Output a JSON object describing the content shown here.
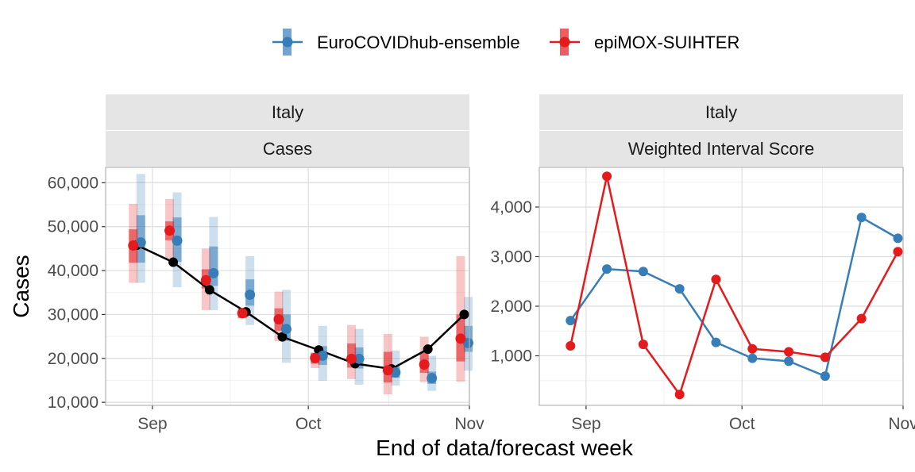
{
  "colors": {
    "ensemble": "#377eb8",
    "epimox": "#e41a1c",
    "truth": "#000000",
    "strip_bg": "#e5e5e5",
    "grid_major": "#dedede",
    "grid_minor": "#f0f0f0",
    "panel_border": "#b3b3b3"
  },
  "legend": {
    "items": [
      {
        "label": "EuroCOVIDhub-ensemble",
        "color_key": "ensemble"
      },
      {
        "label": "epiMOX-SUIHTER",
        "color_key": "epimox"
      }
    ]
  },
  "xlabel": "End of data/forecast week",
  "chart_data": [
    {
      "type": "line",
      "strip_top": "Italy",
      "strip_bottom": "Cases",
      "ylabel": "Cases",
      "x_ticks": [
        "2021-09-01",
        "2021-10-01",
        "2021-11-01"
      ],
      "x_tick_labels": [
        "Sep",
        "Oct",
        "Nov"
      ],
      "xlim": [
        "2021-08-23",
        "2021-11-01"
      ],
      "y_ticks": [
        10000,
        20000,
        30000,
        40000,
        50000,
        60000
      ],
      "y_tick_labels": [
        "10,000",
        "20,000",
        "30,000",
        "40,000",
        "50,000",
        "60,000"
      ],
      "ylim": [
        9300,
        63500
      ],
      "truth": {
        "name": "",
        "x": [
          "2021-08-29",
          "2021-09-05",
          "2021-09-12",
          "2021-09-19",
          "2021-09-26",
          "2021-10-03",
          "2021-10-10",
          "2021-10-17",
          "2021-10-24",
          "2021-10-31"
        ],
        "values": [
          45800,
          41900,
          35600,
          30600,
          24900,
          21900,
          18800,
          17600,
          22100,
          30000
        ]
      },
      "forecasts": [
        {
          "name": "EuroCOVIDhub-ensemble",
          "color_key": "ensemble",
          "x": [
            "2021-08-29",
            "2021-09-05",
            "2021-09-12",
            "2021-09-19",
            "2021-09-26",
            "2021-10-03",
            "2021-10-10",
            "2021-10-17",
            "2021-10-24",
            "2021-10-31"
          ],
          "median": [
            46400,
            46800,
            39400,
            34500,
            26700,
            20600,
            19900,
            16800,
            15500,
            23500
          ],
          "inner": [
            [
              41800,
              52600
            ],
            [
              42000,
              52100
            ],
            [
              36500,
              45500
            ],
            [
              32000,
              38000
            ],
            [
              24000,
              30000
            ],
            [
              18500,
              22800
            ],
            [
              17700,
              22500
            ],
            [
              15600,
              18200
            ],
            [
              14200,
              17000
            ],
            [
              21500,
              27400
            ]
          ],
          "outer": [
            [
              37200,
              62000
            ],
            [
              36200,
              57800
            ],
            [
              31000,
              52200
            ],
            [
              27600,
              43300
            ],
            [
              19000,
              35600
            ],
            [
              14900,
              27400
            ],
            [
              14000,
              26700
            ],
            [
              13800,
              21800
            ],
            [
              12600,
              20600
            ],
            [
              17200,
              34000
            ]
          ]
        },
        {
          "name": "epiMOX-SUIHTER",
          "color_key": "epimox",
          "x": [
            "2021-08-29",
            "2021-09-05",
            "2021-09-12",
            "2021-09-19",
            "2021-09-26",
            "2021-10-03",
            "2021-10-10",
            "2021-10-17",
            "2021-10-24",
            "2021-10-31"
          ],
          "median": [
            45700,
            49100,
            37800,
            30300,
            28900,
            20100,
            19900,
            17300,
            18600,
            24500
          ],
          "inner": [
            [
              41800,
              49400
            ],
            [
              46900,
              51200
            ],
            [
              35900,
              40300
            ],
            [
              29200,
              31300
            ],
            [
              26300,
              31400
            ],
            [
              18800,
              21300
            ],
            [
              17900,
              23400
            ],
            [
              14500,
              21500
            ],
            [
              16700,
              21300
            ],
            [
              19300,
              30000
            ]
          ],
          "outer": [
            [
              37200,
              55200
            ],
            [
              42700,
              56300
            ],
            [
              31000,
              45000
            ],
            [
              29200,
              31300
            ],
            [
              23900,
              35200
            ],
            [
              17800,
              21200
            ],
            [
              15300,
              27600
            ],
            [
              11800,
              25600
            ],
            [
              14600,
              24900
            ],
            [
              14700,
              43300
            ]
          ]
        }
      ]
    },
    {
      "type": "line",
      "strip_top": "Italy",
      "strip_bottom": "Weighted Interval Score",
      "ylabel": "",
      "x_ticks": [
        "2021-09-01",
        "2021-10-01",
        "2021-11-01"
      ],
      "x_tick_labels": [
        "Sep",
        "Oct",
        "Nov"
      ],
      "xlim": [
        "2021-08-23",
        "2021-11-01"
      ],
      "y_ticks": [
        1000,
        2000,
        3000,
        4000
      ],
      "y_tick_labels": [
        "1,000",
        "2,000",
        "3,000",
        "4,000"
      ],
      "ylim": [
        0,
        4800
      ],
      "series": [
        {
          "name": "EuroCOVIDhub-ensemble",
          "color_key": "ensemble",
          "x": [
            "2021-08-29",
            "2021-09-05",
            "2021-09-12",
            "2021-09-19",
            "2021-09-26",
            "2021-10-03",
            "2021-10-10",
            "2021-10-17",
            "2021-10-24",
            "2021-10-31"
          ],
          "values": [
            1710,
            2750,
            2700,
            2350,
            1270,
            950,
            890,
            590,
            3790,
            3370
          ]
        },
        {
          "name": "epiMOX-SUIHTER",
          "color_key": "epimox",
          "x": [
            "2021-08-29",
            "2021-09-05",
            "2021-09-12",
            "2021-09-19",
            "2021-09-26",
            "2021-10-03",
            "2021-10-10",
            "2021-10-17",
            "2021-10-24",
            "2021-10-31"
          ],
          "values": [
            1200,
            4620,
            1230,
            220,
            2540,
            1140,
            1080,
            970,
            1750,
            3100
          ]
        }
      ]
    }
  ]
}
